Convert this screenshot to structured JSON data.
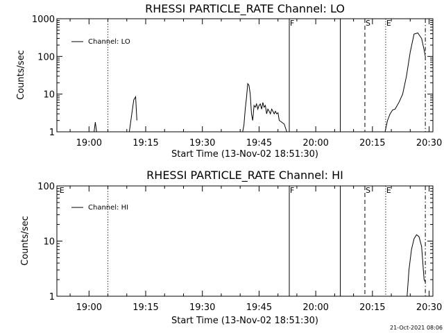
{
  "footer_date": "21-Oct-2021 08:06",
  "chart_data": [
    {
      "type": "line",
      "title": "RHESSI PARTICLE_RATE Channel: LO",
      "xlabel": "Start Time (13-Nov-02 18:51:30)",
      "ylabel": "Counts/sec",
      "legend": "Channel: LO",
      "legend_position": "top-left",
      "y_scale": "log",
      "xlim": [
        "18:51:30",
        "20:31:00"
      ],
      "ylim": [
        1,
        1000
      ],
      "x_ticks": [
        "19:00",
        "19:15",
        "19:30",
        "19:45",
        "20:00",
        "20:15",
        "20:30"
      ],
      "y_ticks": [
        "1",
        "10",
        "100",
        "1000"
      ],
      "markers": [
        {
          "time": "19:05:00",
          "style": "dotted",
          "label": ""
        },
        {
          "time": "19:53:00",
          "style": "solid",
          "label": "F"
        },
        {
          "time": "20:06:30",
          "style": "solid",
          "label": ""
        },
        {
          "time": "20:13:00",
          "style": "dashed",
          "label": "S"
        },
        {
          "time": "20:18:30",
          "style": "dotted",
          "label": "E"
        },
        {
          "time": "20:29:00",
          "style": "dashdot",
          "label": ""
        }
      ],
      "series": [
        {
          "name": "Channel: LO",
          "segments": [
            {
              "x": [
                "19:01:20",
                "19:01:40",
                "19:02:00"
              ],
              "y": [
                1.0,
                1.8,
                1.0
              ]
            },
            {
              "x": [
                "19:10:40",
                "19:11:20",
                "19:11:50",
                "19:12:20",
                "19:12:40"
              ],
              "y": [
                1.0,
                3.0,
                7.0,
                8.5,
                2.0
              ]
            },
            {
              "x": [
                "19:40:40",
                "19:41:00",
                "19:41:20",
                "19:41:40",
                "19:42:00",
                "19:42:20",
                "19:42:40",
                "19:43:00",
                "19:43:20",
                "19:43:40",
                "19:44:00",
                "19:44:20",
                "19:44:40",
                "19:45:00",
                "19:45:20",
                "19:45:40",
                "19:46:00",
                "19:46:20",
                "19:46:40",
                "19:47:00",
                "19:47:20",
                "19:47:40",
                "19:48:00",
                "19:48:20",
                "19:48:40",
                "19:49:00",
                "19:49:20",
                "19:49:40",
                "19:50:00",
                "19:50:20",
                "19:51:00",
                "19:51:40",
                "19:52:20"
              ],
              "y": [
                1.0,
                1.5,
                4.0,
                8.0,
                19.0,
                17.0,
                10.0,
                3.0,
                2.0,
                5.0,
                4.5,
                5.5,
                4.0,
                5.0,
                5.5,
                4.0,
                6.0,
                4.5,
                5.0,
                3.0,
                4.0,
                3.5,
                3.0,
                4.0,
                3.5,
                3.0,
                3.5,
                3.0,
                3.2,
                2.0,
                1.8,
                1.6,
                1.0
              ]
            },
            {
              "x": [
                "20:18:20",
                "20:19:00",
                "20:19:40",
                "20:20:20",
                "20:21:00",
                "20:22:00",
                "20:23:00",
                "20:24:00",
                "20:25:00",
                "20:26:00",
                "20:27:00",
                "20:28:00",
                "20:28:40",
                "20:29:00"
              ],
              "y": [
                1.0,
                2.0,
                3.0,
                3.8,
                4.0,
                6.0,
                10.0,
                30.0,
                130.0,
                390.0,
                420.0,
                300.0,
                150.0,
                100.0
              ]
            }
          ]
        }
      ]
    },
    {
      "type": "line",
      "title": "RHESSI PARTICLE_RATE Channel: HI",
      "xlabel": "Start Time (13-Nov-02 18:51:30)",
      "ylabel": "Counts/sec",
      "legend": "Channel: HI",
      "legend_position": "top-left",
      "y_scale": "log",
      "xlim": [
        "18:51:30",
        "20:31:00"
      ],
      "ylim": [
        1,
        100
      ],
      "x_ticks": [
        "19:00",
        "19:15",
        "19:30",
        "19:45",
        "20:00",
        "20:15",
        "20:30"
      ],
      "y_ticks": [
        "1",
        "10",
        "100"
      ],
      "markers": [
        {
          "time": "18:52:00",
          "style": "none",
          "label": "E"
        },
        {
          "time": "19:05:00",
          "style": "dotted",
          "label": ""
        },
        {
          "time": "19:53:00",
          "style": "solid",
          "label": "F"
        },
        {
          "time": "20:06:30",
          "style": "solid",
          "label": ""
        },
        {
          "time": "20:13:00",
          "style": "dashed",
          "label": "S"
        },
        {
          "time": "20:18:30",
          "style": "dotted",
          "label": "E"
        },
        {
          "time": "20:29:00",
          "style": "dashdot",
          "label": ""
        }
      ],
      "series": [
        {
          "name": "Channel: HI",
          "segments": [
            {
              "x": [
                "20:24:10",
                "20:24:40",
                "20:25:20",
                "20:26:00",
                "20:26:40",
                "20:27:20",
                "20:28:00",
                "20:28:20",
                "20:28:40",
                "20:29:00"
              ],
              "y": [
                1.0,
                3.0,
                7.0,
                11.0,
                13.0,
                12.0,
                8.0,
                4.0,
                2.0,
                1.8
              ]
            }
          ]
        }
      ]
    }
  ]
}
